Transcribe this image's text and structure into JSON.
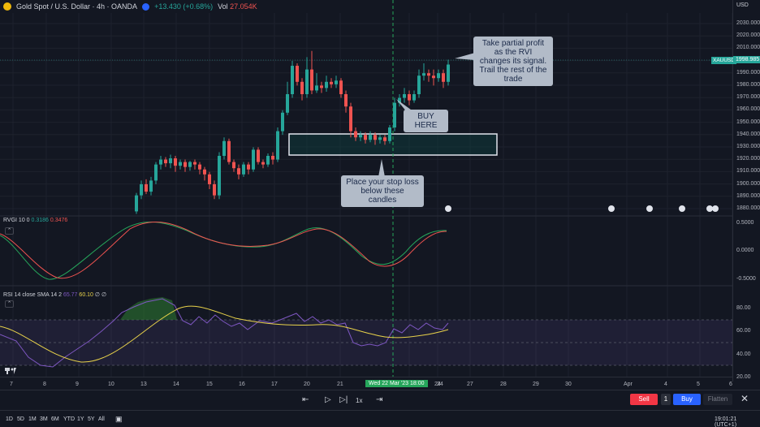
{
  "header": {
    "symbol_title": "Gold Spot / U.S. Dollar · 4h · OANDA",
    "change": "+13.430 (+0.68%)",
    "volume_label": "Vol",
    "volume_value": "27.054K"
  },
  "price_axis": {
    "currency": "USD",
    "labels": [
      "2030.000",
      "2020.000",
      "2010.000",
      "2000.000",
      "1990.000",
      "1980.000",
      "1970.000",
      "1960.000",
      "1950.000",
      "1940.000",
      "1930.000",
      "1920.000",
      "1910.000",
      "1900.000",
      "1890.000",
      "1880.000"
    ],
    "last_price": "1998.985",
    "symbol_tag": "XAUUSD"
  },
  "rvi_pane": {
    "name": "RVGI 10",
    "param": "0",
    "value1": "0.3186",
    "value2": "0.3476",
    "axis": [
      "0.5000",
      "0.0000",
      "-0.5000"
    ]
  },
  "rsi_pane": {
    "name": "RSI 14 close SMA 14 2",
    "value1": "65.77",
    "value2": "60.10",
    "extra1": "∅",
    "extra2": "∅",
    "axis": [
      "80.00",
      "60.00",
      "40.00",
      "20.00"
    ]
  },
  "callouts": {
    "take_profit": "Take partial profit as the RVI changes its signal. Trail the rest of the trade",
    "buy_here": "BUY HERE",
    "stop_loss": "Place your stop loss below these candles"
  },
  "time_axis": {
    "labels": [
      "7",
      "8",
      "9",
      "10",
      "13",
      "14",
      "15",
      "16",
      "17",
      "20",
      "21",
      "23",
      "24",
      "27",
      "28",
      "29",
      "30",
      "Apr",
      "4",
      "5",
      "6"
    ],
    "current": "Wed 22 Mar '23   18:00"
  },
  "replay": {
    "speed": "1x"
  },
  "trade": {
    "sell": "Sell",
    "qty": "1",
    "buy": "Buy",
    "flatten": "Flatten"
  },
  "timeframes": [
    "1D",
    "5D",
    "1M",
    "3M",
    "6M",
    "YTD",
    "1Y",
    "5Y",
    "All"
  ],
  "clock": "19:01:21 (UTC+1)",
  "colors": {
    "up": "#26a69a",
    "down": "#ef5350",
    "rvi_green": "#26a65b",
    "rvi_red": "#ef5350",
    "rsi": "#7e57c2",
    "rsi_ma": "#e8d24a"
  }
}
